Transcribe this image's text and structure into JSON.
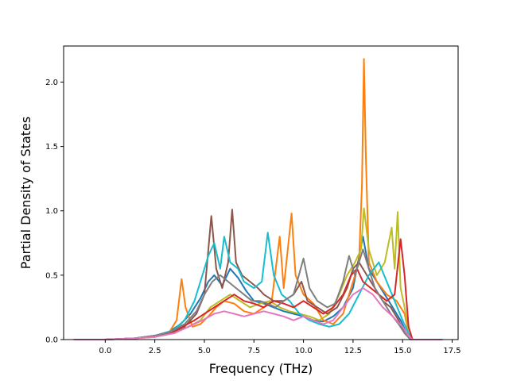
{
  "chart_data": {
    "type": "line",
    "title": "",
    "xlabel": "Frequency (THz)",
    "ylabel": "Partial Density of States",
    "xlim": [
      -2.1,
      17.8
    ],
    "ylim": [
      0.0,
      2.28
    ],
    "xticks": [
      0.0,
      2.5,
      5.0,
      7.5,
      10.0,
      12.5,
      15.0,
      17.5
    ],
    "xtick_labels": [
      "0.0",
      "2.5",
      "5.0",
      "7.5",
      "10.0",
      "12.5",
      "15.0",
      "17.5"
    ],
    "yticks": [
      0.0,
      0.5,
      1.0,
      1.5,
      2.0
    ],
    "ytick_labels": [
      "0.0",
      "0.5",
      "1.0",
      "1.5",
      "2.0"
    ],
    "grid": false,
    "legend": false,
    "series": [
      {
        "color": "#1f77b4",
        "points": [
          [
            -1.6,
            0
          ],
          [
            0,
            0
          ],
          [
            1.5,
            0.01
          ],
          [
            2.5,
            0.03
          ],
          [
            3.2,
            0.06
          ],
          [
            3.8,
            0.12
          ],
          [
            4.3,
            0.2
          ],
          [
            4.8,
            0.32
          ],
          [
            5.2,
            0.45
          ],
          [
            5.5,
            0.5
          ],
          [
            5.9,
            0.42
          ],
          [
            6.3,
            0.55
          ],
          [
            6.7,
            0.48
          ],
          [
            7.1,
            0.38
          ],
          [
            7.5,
            0.3
          ],
          [
            8.0,
            0.28
          ],
          [
            8.5,
            0.25
          ],
          [
            9.0,
            0.22
          ],
          [
            9.5,
            0.2
          ],
          [
            10.0,
            0.18
          ],
          [
            10.5,
            0.15
          ],
          [
            11.0,
            0.14
          ],
          [
            11.5,
            0.18
          ],
          [
            12.0,
            0.25
          ],
          [
            12.5,
            0.4
          ],
          [
            13.0,
            0.8
          ],
          [
            13.3,
            0.55
          ],
          [
            13.7,
            0.45
          ],
          [
            14.1,
            0.35
          ],
          [
            14.5,
            0.25
          ],
          [
            14.9,
            0.15
          ],
          [
            15.2,
            0.05
          ],
          [
            15.5,
            0.0
          ],
          [
            17.0,
            0.0
          ]
        ]
      },
      {
        "color": "#ff7f0e",
        "points": [
          [
            -1.6,
            0
          ],
          [
            0,
            0
          ],
          [
            1.5,
            0.01
          ],
          [
            2.5,
            0.02
          ],
          [
            3.2,
            0.05
          ],
          [
            3.6,
            0.15
          ],
          [
            3.85,
            0.47
          ],
          [
            4.05,
            0.25
          ],
          [
            4.4,
            0.1
          ],
          [
            4.8,
            0.12
          ],
          [
            5.2,
            0.18
          ],
          [
            5.6,
            0.25
          ],
          [
            6.0,
            0.3
          ],
          [
            6.5,
            0.28
          ],
          [
            7.0,
            0.22
          ],
          [
            7.5,
            0.2
          ],
          [
            8.0,
            0.25
          ],
          [
            8.4,
            0.3
          ],
          [
            8.8,
            0.8
          ],
          [
            9.0,
            0.4
          ],
          [
            9.4,
            0.98
          ],
          [
            9.6,
            0.5
          ],
          [
            10.0,
            0.35
          ],
          [
            10.5,
            0.28
          ],
          [
            11.0,
            0.15
          ],
          [
            11.5,
            0.12
          ],
          [
            12.0,
            0.2
          ],
          [
            12.5,
            0.45
          ],
          [
            12.8,
            0.6
          ],
          [
            12.95,
            1.2
          ],
          [
            13.05,
            2.18
          ],
          [
            13.15,
            1.4
          ],
          [
            13.3,
            0.6
          ],
          [
            13.7,
            0.45
          ],
          [
            14.2,
            0.35
          ],
          [
            14.7,
            0.3
          ],
          [
            15.1,
            0.2
          ],
          [
            15.3,
            0.05
          ],
          [
            15.5,
            0.0
          ],
          [
            17.0,
            0.0
          ]
        ]
      },
      {
        "color": "#bcbd22",
        "points": [
          [
            -1.6,
            0
          ],
          [
            0,
            0
          ],
          [
            1.5,
            0.01
          ],
          [
            2.5,
            0.02
          ],
          [
            3.5,
            0.06
          ],
          [
            4.2,
            0.1
          ],
          [
            4.8,
            0.15
          ],
          [
            5.3,
            0.25
          ],
          [
            5.8,
            0.3
          ],
          [
            6.3,
            0.35
          ],
          [
            6.8,
            0.3
          ],
          [
            7.3,
            0.25
          ],
          [
            7.8,
            0.28
          ],
          [
            8.3,
            0.3
          ],
          [
            8.8,
            0.25
          ],
          [
            9.3,
            0.22
          ],
          [
            9.8,
            0.2
          ],
          [
            10.3,
            0.18
          ],
          [
            10.8,
            0.15
          ],
          [
            11.3,
            0.2
          ],
          [
            11.8,
            0.35
          ],
          [
            12.2,
            0.5
          ],
          [
            12.6,
            0.6
          ],
          [
            12.9,
            0.7
          ],
          [
            13.05,
            1.02
          ],
          [
            13.3,
            0.7
          ],
          [
            13.7,
            0.5
          ],
          [
            14.1,
            0.6
          ],
          [
            14.45,
            0.87
          ],
          [
            14.6,
            0.55
          ],
          [
            14.75,
            0.99
          ],
          [
            14.9,
            0.4
          ],
          [
            15.1,
            0.25
          ],
          [
            15.3,
            0.05
          ],
          [
            15.5,
            0.0
          ],
          [
            17.0,
            0.0
          ]
        ]
      },
      {
        "color": "#8c564b",
        "points": [
          [
            -1.6,
            0
          ],
          [
            0,
            0
          ],
          [
            1.5,
            0.01
          ],
          [
            2.5,
            0.03
          ],
          [
            3.3,
            0.05
          ],
          [
            4.0,
            0.1
          ],
          [
            4.6,
            0.2
          ],
          [
            5.0,
            0.35
          ],
          [
            5.35,
            0.96
          ],
          [
            5.6,
            0.55
          ],
          [
            5.9,
            0.4
          ],
          [
            6.2,
            0.6
          ],
          [
            6.4,
            1.01
          ],
          [
            6.6,
            0.6
          ],
          [
            6.9,
            0.5
          ],
          [
            7.3,
            0.45
          ],
          [
            7.7,
            0.4
          ],
          [
            8.0,
            0.35
          ],
          [
            8.5,
            0.3
          ],
          [
            9.0,
            0.3
          ],
          [
            9.5,
            0.35
          ],
          [
            9.9,
            0.45
          ],
          [
            10.2,
            0.3
          ],
          [
            10.7,
            0.25
          ],
          [
            11.2,
            0.2
          ],
          [
            11.7,
            0.25
          ],
          [
            12.2,
            0.4
          ],
          [
            12.5,
            0.55
          ],
          [
            12.8,
            0.6
          ],
          [
            13.2,
            0.5
          ],
          [
            13.6,
            0.4
          ],
          [
            14.0,
            0.3
          ],
          [
            14.4,
            0.25
          ],
          [
            14.8,
            0.15
          ],
          [
            15.1,
            0.05
          ],
          [
            15.4,
            0.0
          ],
          [
            17.0,
            0.0
          ]
        ]
      },
      {
        "color": "#17becf",
        "points": [
          [
            -1.6,
            0
          ],
          [
            0,
            0
          ],
          [
            1.5,
            0.01
          ],
          [
            2.5,
            0.03
          ],
          [
            3.4,
            0.07
          ],
          [
            4.0,
            0.15
          ],
          [
            4.5,
            0.3
          ],
          [
            4.9,
            0.5
          ],
          [
            5.2,
            0.65
          ],
          [
            5.5,
            0.75
          ],
          [
            5.8,
            0.55
          ],
          [
            6.0,
            0.8
          ],
          [
            6.3,
            0.6
          ],
          [
            6.7,
            0.55
          ],
          [
            7.0,
            0.45
          ],
          [
            7.5,
            0.4
          ],
          [
            7.9,
            0.45
          ],
          [
            8.2,
            0.83
          ],
          [
            8.5,
            0.5
          ],
          [
            8.9,
            0.35
          ],
          [
            9.3,
            0.3
          ],
          [
            9.8,
            0.2
          ],
          [
            10.3,
            0.15
          ],
          [
            10.8,
            0.12
          ],
          [
            11.3,
            0.1
          ],
          [
            11.8,
            0.12
          ],
          [
            12.3,
            0.2
          ],
          [
            12.8,
            0.35
          ],
          [
            13.3,
            0.5
          ],
          [
            13.8,
            0.6
          ],
          [
            14.2,
            0.45
          ],
          [
            14.6,
            0.3
          ],
          [
            15.0,
            0.15
          ],
          [
            15.3,
            0.05
          ],
          [
            15.5,
            0.0
          ],
          [
            17.0,
            0.0
          ]
        ]
      },
      {
        "color": "#d62728",
        "points": [
          [
            -1.6,
            0
          ],
          [
            0,
            0
          ],
          [
            1.5,
            0.01
          ],
          [
            2.5,
            0.03
          ],
          [
            3.3,
            0.05
          ],
          [
            3.9,
            0.1
          ],
          [
            4.5,
            0.15
          ],
          [
            5.0,
            0.2
          ],
          [
            5.5,
            0.25
          ],
          [
            6.0,
            0.3
          ],
          [
            6.5,
            0.35
          ],
          [
            7.0,
            0.3
          ],
          [
            7.5,
            0.28
          ],
          [
            8.0,
            0.25
          ],
          [
            8.5,
            0.3
          ],
          [
            9.0,
            0.28
          ],
          [
            9.5,
            0.25
          ],
          [
            10.0,
            0.3
          ],
          [
            10.5,
            0.25
          ],
          [
            11.0,
            0.2
          ],
          [
            11.5,
            0.25
          ],
          [
            12.0,
            0.35
          ],
          [
            12.4,
            0.5
          ],
          [
            12.7,
            0.55
          ],
          [
            13.0,
            0.45
          ],
          [
            13.4,
            0.4
          ],
          [
            13.8,
            0.35
          ],
          [
            14.2,
            0.3
          ],
          [
            14.6,
            0.35
          ],
          [
            14.9,
            0.78
          ],
          [
            15.1,
            0.5
          ],
          [
            15.3,
            0.1
          ],
          [
            15.5,
            0.0
          ],
          [
            17.0,
            0.0
          ]
        ]
      },
      {
        "color": "#7f7f7f",
        "points": [
          [
            -1.6,
            0
          ],
          [
            0,
            0
          ],
          [
            1.5,
            0.01
          ],
          [
            2.5,
            0.03
          ],
          [
            3.3,
            0.06
          ],
          [
            4.0,
            0.12
          ],
          [
            4.6,
            0.22
          ],
          [
            5.0,
            0.35
          ],
          [
            5.4,
            0.45
          ],
          [
            5.8,
            0.5
          ],
          [
            6.2,
            0.45
          ],
          [
            6.6,
            0.4
          ],
          [
            7.0,
            0.35
          ],
          [
            7.4,
            0.3
          ],
          [
            7.8,
            0.3
          ],
          [
            8.2,
            0.28
          ],
          [
            8.6,
            0.25
          ],
          [
            9.0,
            0.3
          ],
          [
            9.5,
            0.35
          ],
          [
            10.0,
            0.63
          ],
          [
            10.3,
            0.4
          ],
          [
            10.7,
            0.3
          ],
          [
            11.2,
            0.25
          ],
          [
            11.6,
            0.28
          ],
          [
            12.0,
            0.45
          ],
          [
            12.3,
            0.65
          ],
          [
            12.6,
            0.5
          ],
          [
            13.0,
            0.7
          ],
          [
            13.3,
            0.55
          ],
          [
            13.6,
            0.4
          ],
          [
            14.0,
            0.3
          ],
          [
            14.4,
            0.2
          ],
          [
            14.8,
            0.12
          ],
          [
            15.1,
            0.05
          ],
          [
            15.4,
            0.0
          ],
          [
            17.0,
            0.0
          ]
        ]
      },
      {
        "color": "#e377c2",
        "points": [
          [
            -1.6,
            0
          ],
          [
            0,
            0
          ],
          [
            1.5,
            0.01
          ],
          [
            2.5,
            0.02
          ],
          [
            3.5,
            0.05
          ],
          [
            4.2,
            0.1
          ],
          [
            4.9,
            0.15
          ],
          [
            5.5,
            0.2
          ],
          [
            6.0,
            0.22
          ],
          [
            6.5,
            0.2
          ],
          [
            7.0,
            0.18
          ],
          [
            7.5,
            0.2
          ],
          [
            8.0,
            0.22
          ],
          [
            8.5,
            0.2
          ],
          [
            9.0,
            0.18
          ],
          [
            9.5,
            0.15
          ],
          [
            10.0,
            0.18
          ],
          [
            10.5,
            0.15
          ],
          [
            11.0,
            0.12
          ],
          [
            11.5,
            0.15
          ],
          [
            12.0,
            0.25
          ],
          [
            12.5,
            0.35
          ],
          [
            13.0,
            0.4
          ],
          [
            13.5,
            0.35
          ],
          [
            14.0,
            0.25
          ],
          [
            14.5,
            0.18
          ],
          [
            15.0,
            0.1
          ],
          [
            15.3,
            0.03
          ],
          [
            15.5,
            0.0
          ],
          [
            17.0,
            0.0
          ]
        ]
      }
    ]
  }
}
